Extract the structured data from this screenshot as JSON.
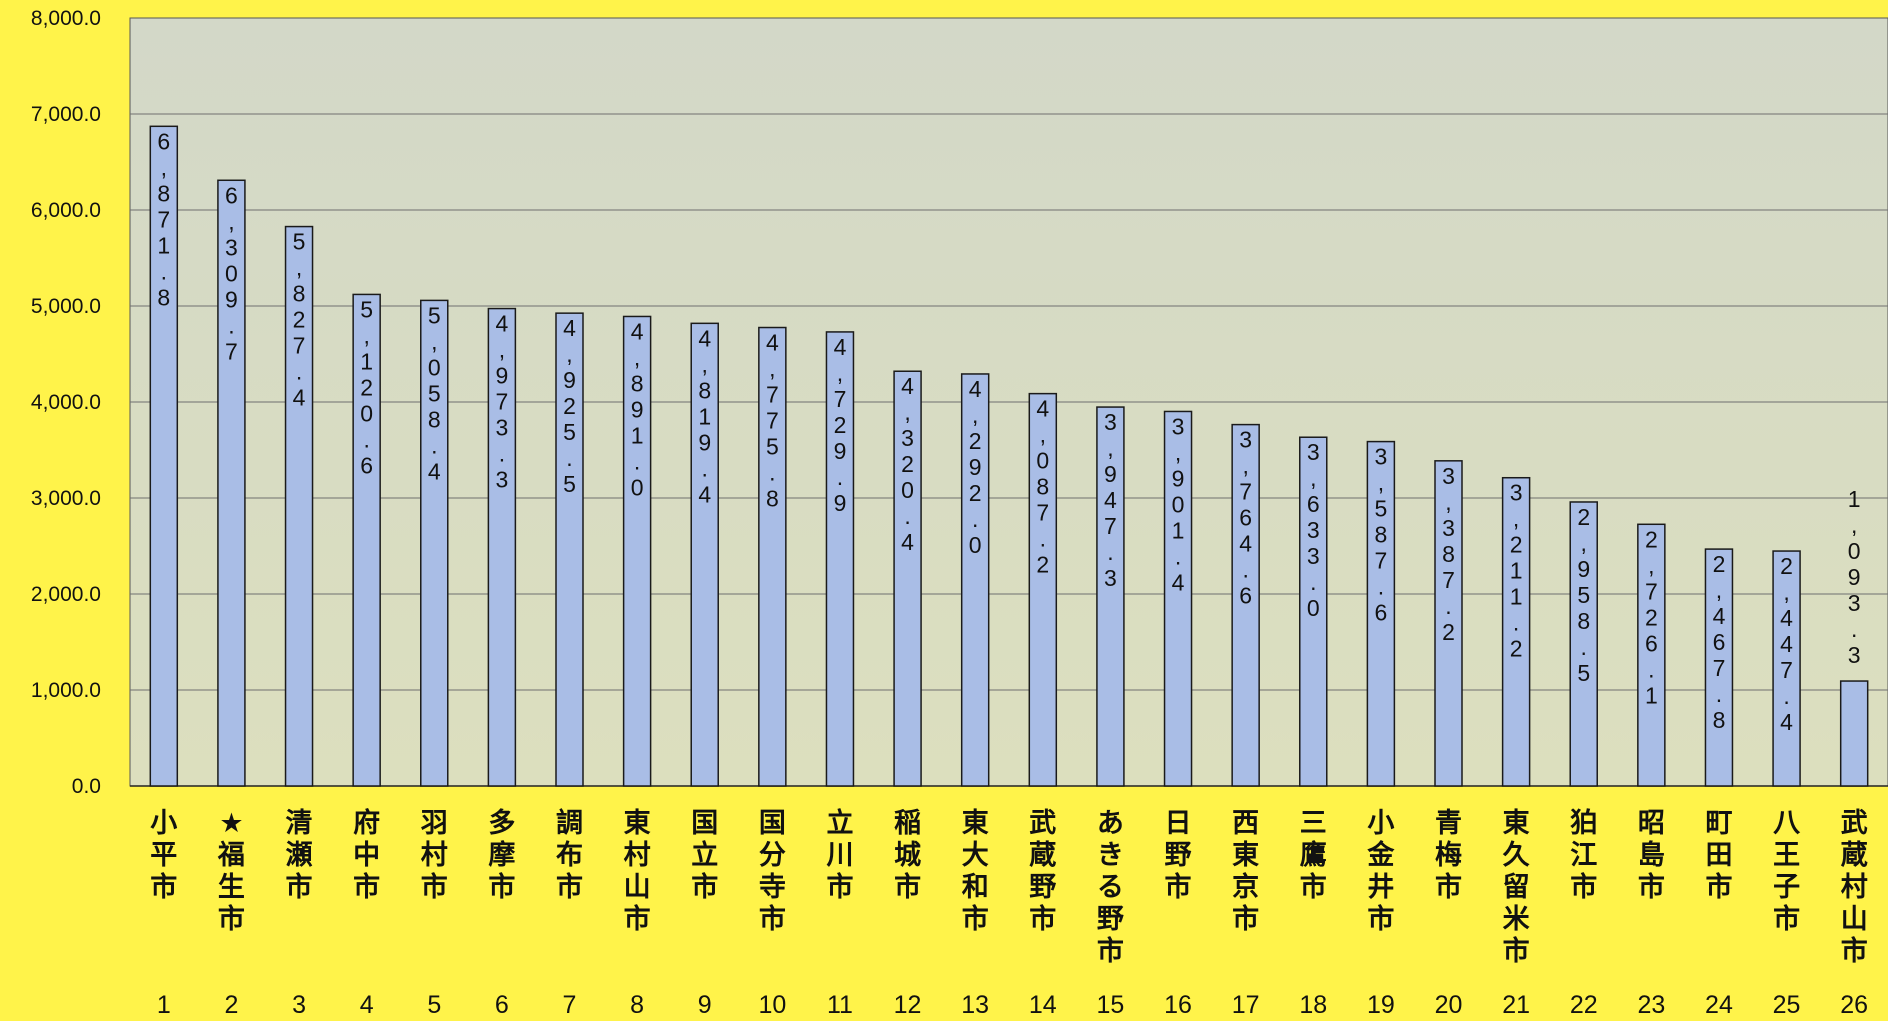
{
  "chart_data": {
    "type": "bar",
    "title": "",
    "xlabel": "",
    "ylabel": "",
    "ylim": [
      0,
      8000
    ],
    "yticks": [
      "0.0",
      "1,000.0",
      "2,000.0",
      "3,000.0",
      "4,000.0",
      "5,000.0",
      "6,000.0",
      "7,000.0",
      "8,000.0"
    ],
    "grid": true,
    "legend": "none",
    "categories": [
      "小平市",
      "★福生市",
      "清瀬市",
      "府中市",
      "羽村市",
      "多摩市",
      "調布市",
      "東村山市",
      "国立市",
      "国分寺市",
      "立川市",
      "稲城市",
      "東大和市",
      "武蔵野市",
      "あきる野市",
      "日野市",
      "西東京市",
      "三鷹市",
      "小金井市",
      "青梅市",
      "東久留米市",
      "狛江市",
      "昭島市",
      "町田市",
      "八王子市",
      "武蔵村山市"
    ],
    "ranks": [
      "1",
      "2",
      "3",
      "4",
      "5",
      "6",
      "7",
      "8",
      "9",
      "10",
      "11",
      "12",
      "13",
      "14",
      "15",
      "16",
      "17",
      "18",
      "19",
      "20",
      "21",
      "22",
      "23",
      "24",
      "25",
      "26"
    ],
    "values": [
      6871.8,
      6309.7,
      5827.4,
      5120.6,
      5058.4,
      4973.3,
      4925.5,
      4891.0,
      4819.4,
      4775.8,
      4729.9,
      4320.4,
      4292.0,
      4087.2,
      3947.3,
      3901.4,
      3764.6,
      3633.0,
      3587.6,
      3387.2,
      3211.2,
      2958.5,
      2726.1,
      2467.8,
      2447.4,
      1093.3
    ],
    "value_labels": [
      "6,871.8",
      "6,309.7",
      "5,827.4",
      "5,120.6",
      "5,058.4",
      "4,973.3",
      "4,925.5",
      "4,891.0",
      "4,819.4",
      "4,775.8",
      "4,729.9",
      "4,320.4",
      "4,292.0",
      "4,087.2",
      "3,947.3",
      "3,901.4",
      "3,764.6",
      "3,633.0",
      "3,587.6",
      "3,387.2",
      "3,211.2",
      "2,958.5",
      "2,726.1",
      "2,467.8",
      "2,447.4",
      "1,093.3"
    ],
    "colors": {
      "background": "#fff34a",
      "plot_area": "#d8dcc2",
      "bar_fill": "#a9bde6",
      "bar_stroke": "#1a1a1a",
      "grid": "#6f6f6f"
    }
  }
}
